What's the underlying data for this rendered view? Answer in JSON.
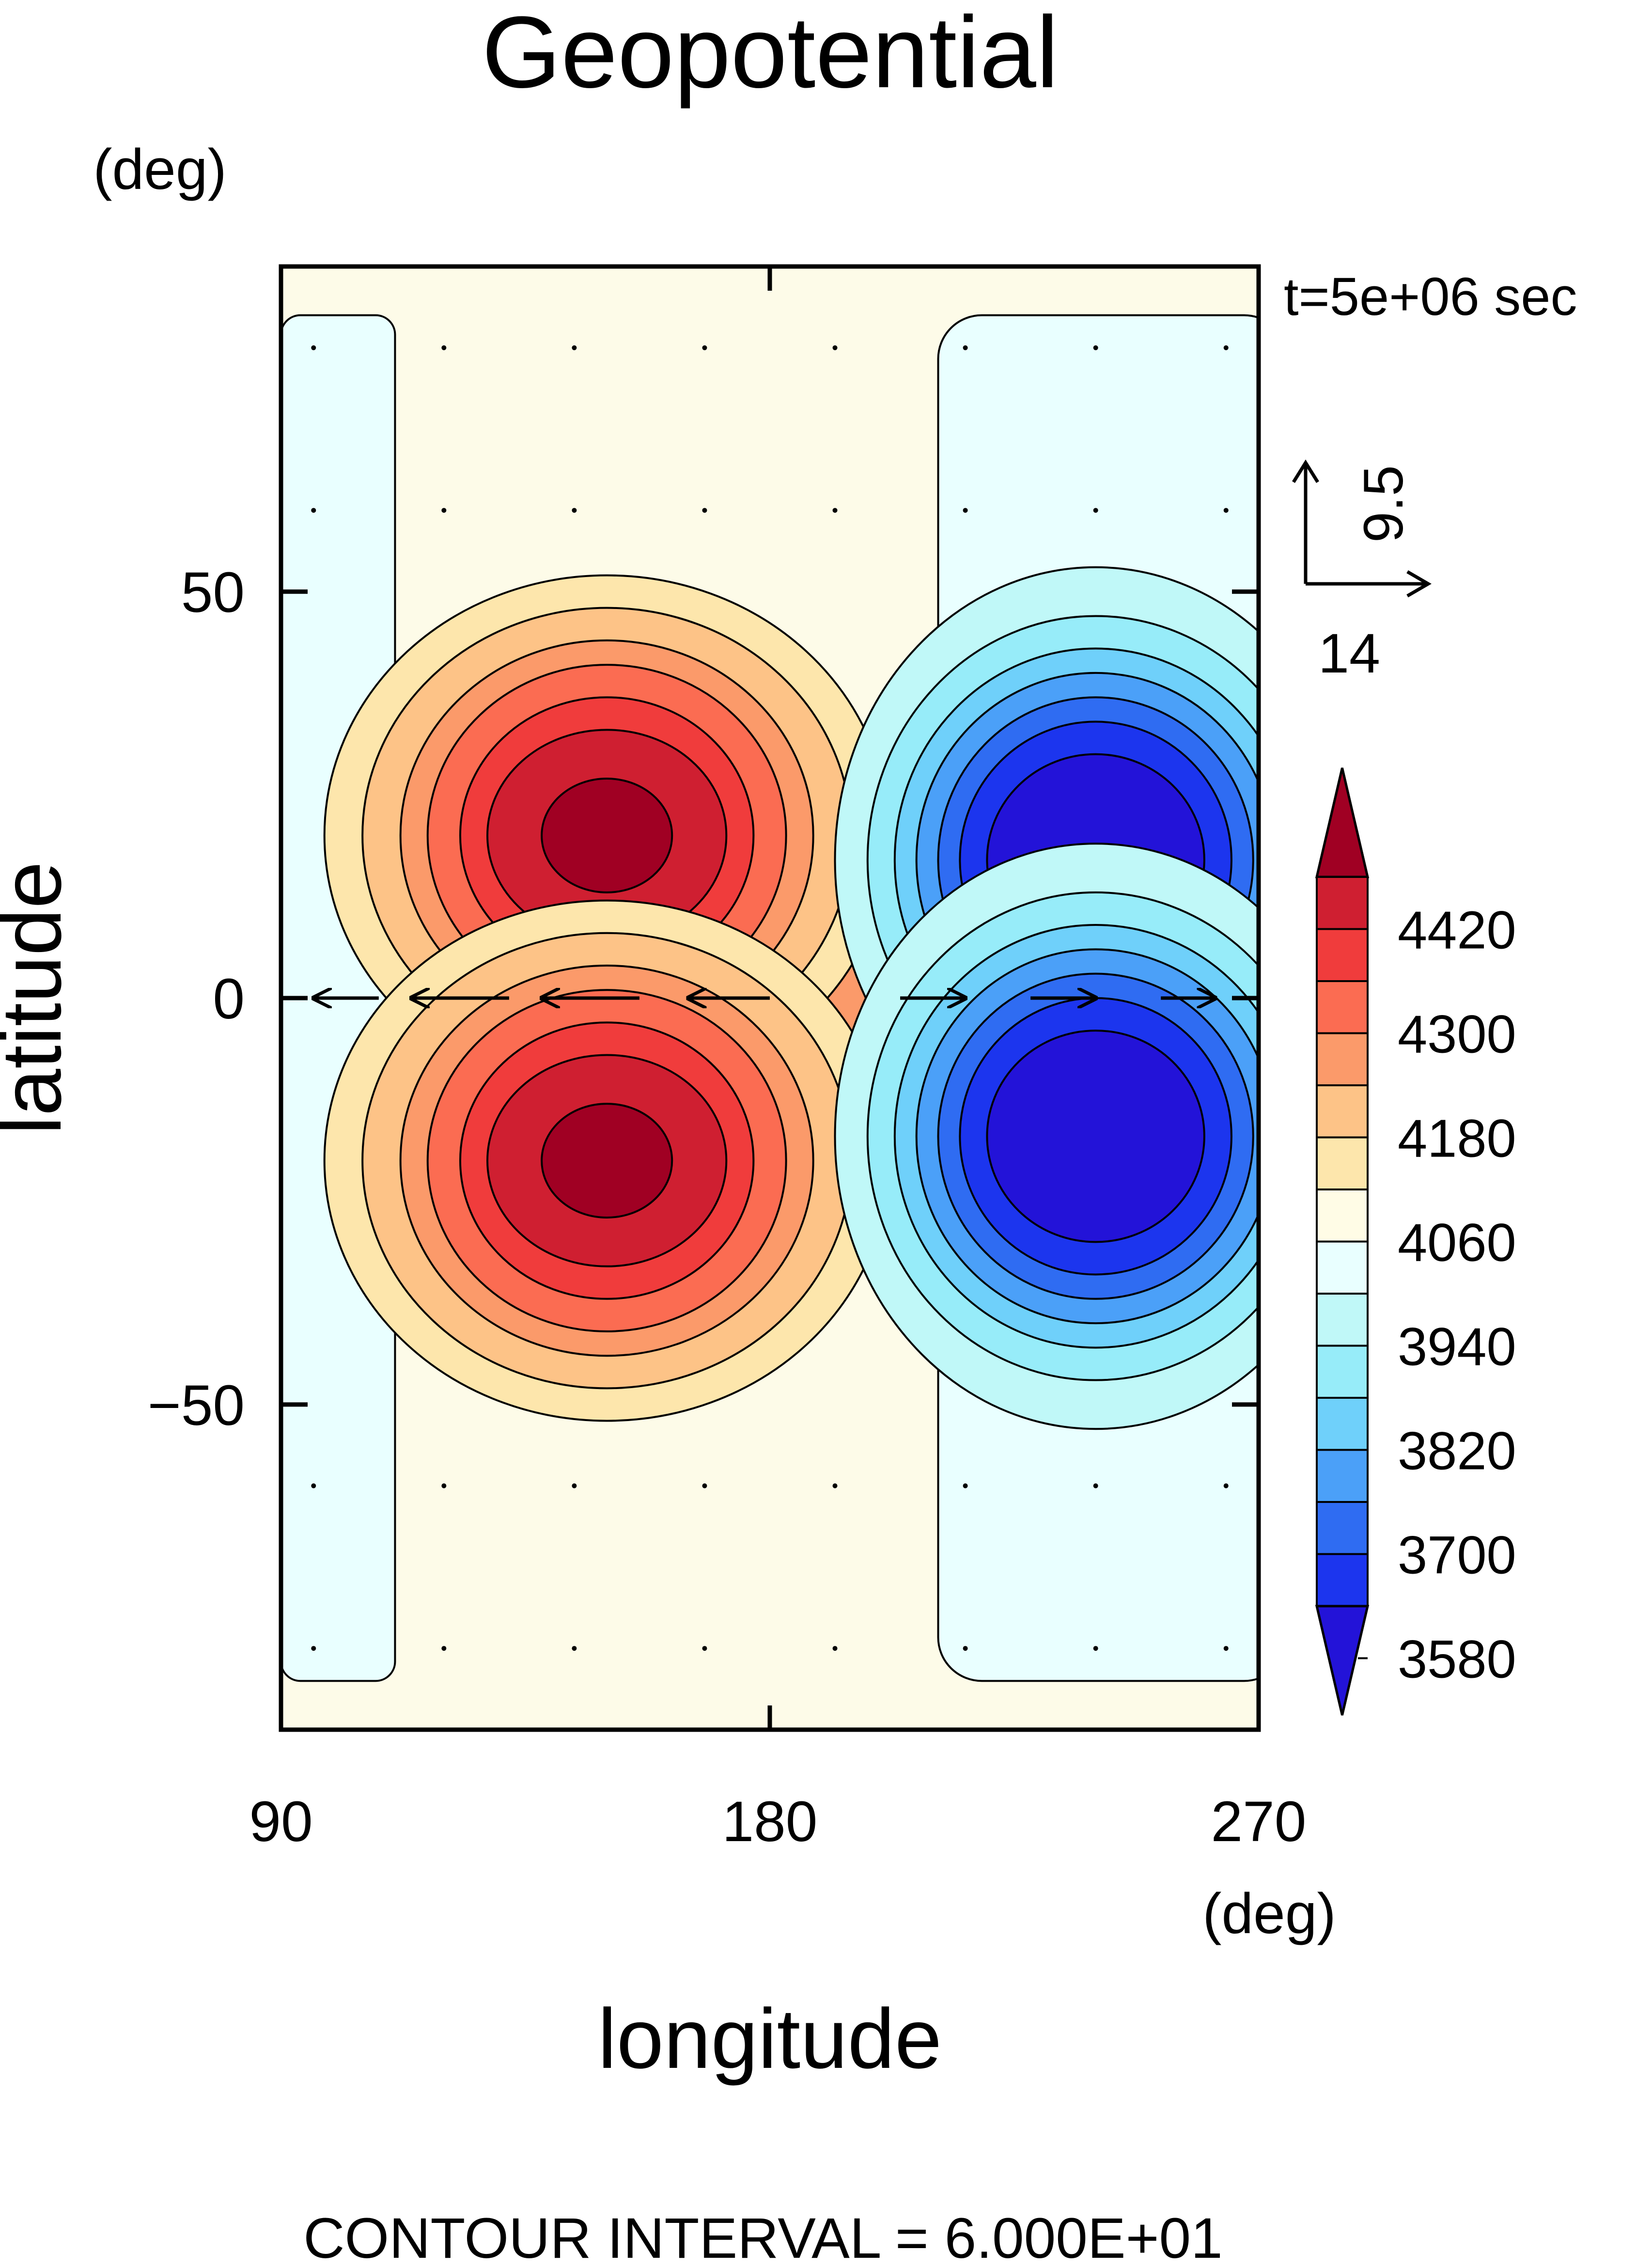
{
  "chart_data": {
    "type": "heatmap",
    "title": "Geopotential",
    "xlabel": "longitude",
    "ylabel": "latitude",
    "x_unit": "(deg)",
    "y_unit": "(deg)",
    "xlim": [
      90,
      270
    ],
    "ylim": [
      -90,
      90
    ],
    "x_ticks": [
      90,
      180,
      270
    ],
    "y_ticks": [
      50,
      0,
      -50
    ],
    "x_tick_labels": [
      "90",
      "180",
      "270"
    ],
    "y_tick_labels": [
      "50",
      "0",
      "−50"
    ],
    "time_label": "t=5e+06 sec",
    "vector_reference": {
      "u": "14",
      "v": "9.5"
    },
    "footer": "CONTOUR INTERVAL = 6.000E+01",
    "contour_interval": 60,
    "colorbar": {
      "labels": [
        "4420",
        "4300",
        "4180",
        "4060",
        "3940",
        "3820",
        "3700",
        "3580"
      ],
      "colors_top_to_bottom": [
        "#a00023",
        "#cf1f31",
        "#f03c3c",
        "#fb6c52",
        "#fb9a6a",
        "#fdc387",
        "#fde6ac",
        "#fffce6",
        "#e9ffff",
        "#c0f8f8",
        "#97ecf9",
        "#6fd0fa",
        "#4ba0f8",
        "#2f6cf2",
        "#1c35ee",
        "#2313d8"
      ]
    },
    "features": [
      {
        "kind": "high",
        "lon": 150,
        "lat": 20,
        "value_gt": 4480
      },
      {
        "kind": "high",
        "lon": 150,
        "lat": -20,
        "value_gt": 4480
      },
      {
        "kind": "low",
        "lon": 240,
        "lat": 17,
        "value_lt": 3580
      },
      {
        "kind": "low",
        "lon": 240,
        "lat": -17,
        "value_lt": 3580
      }
    ]
  }
}
